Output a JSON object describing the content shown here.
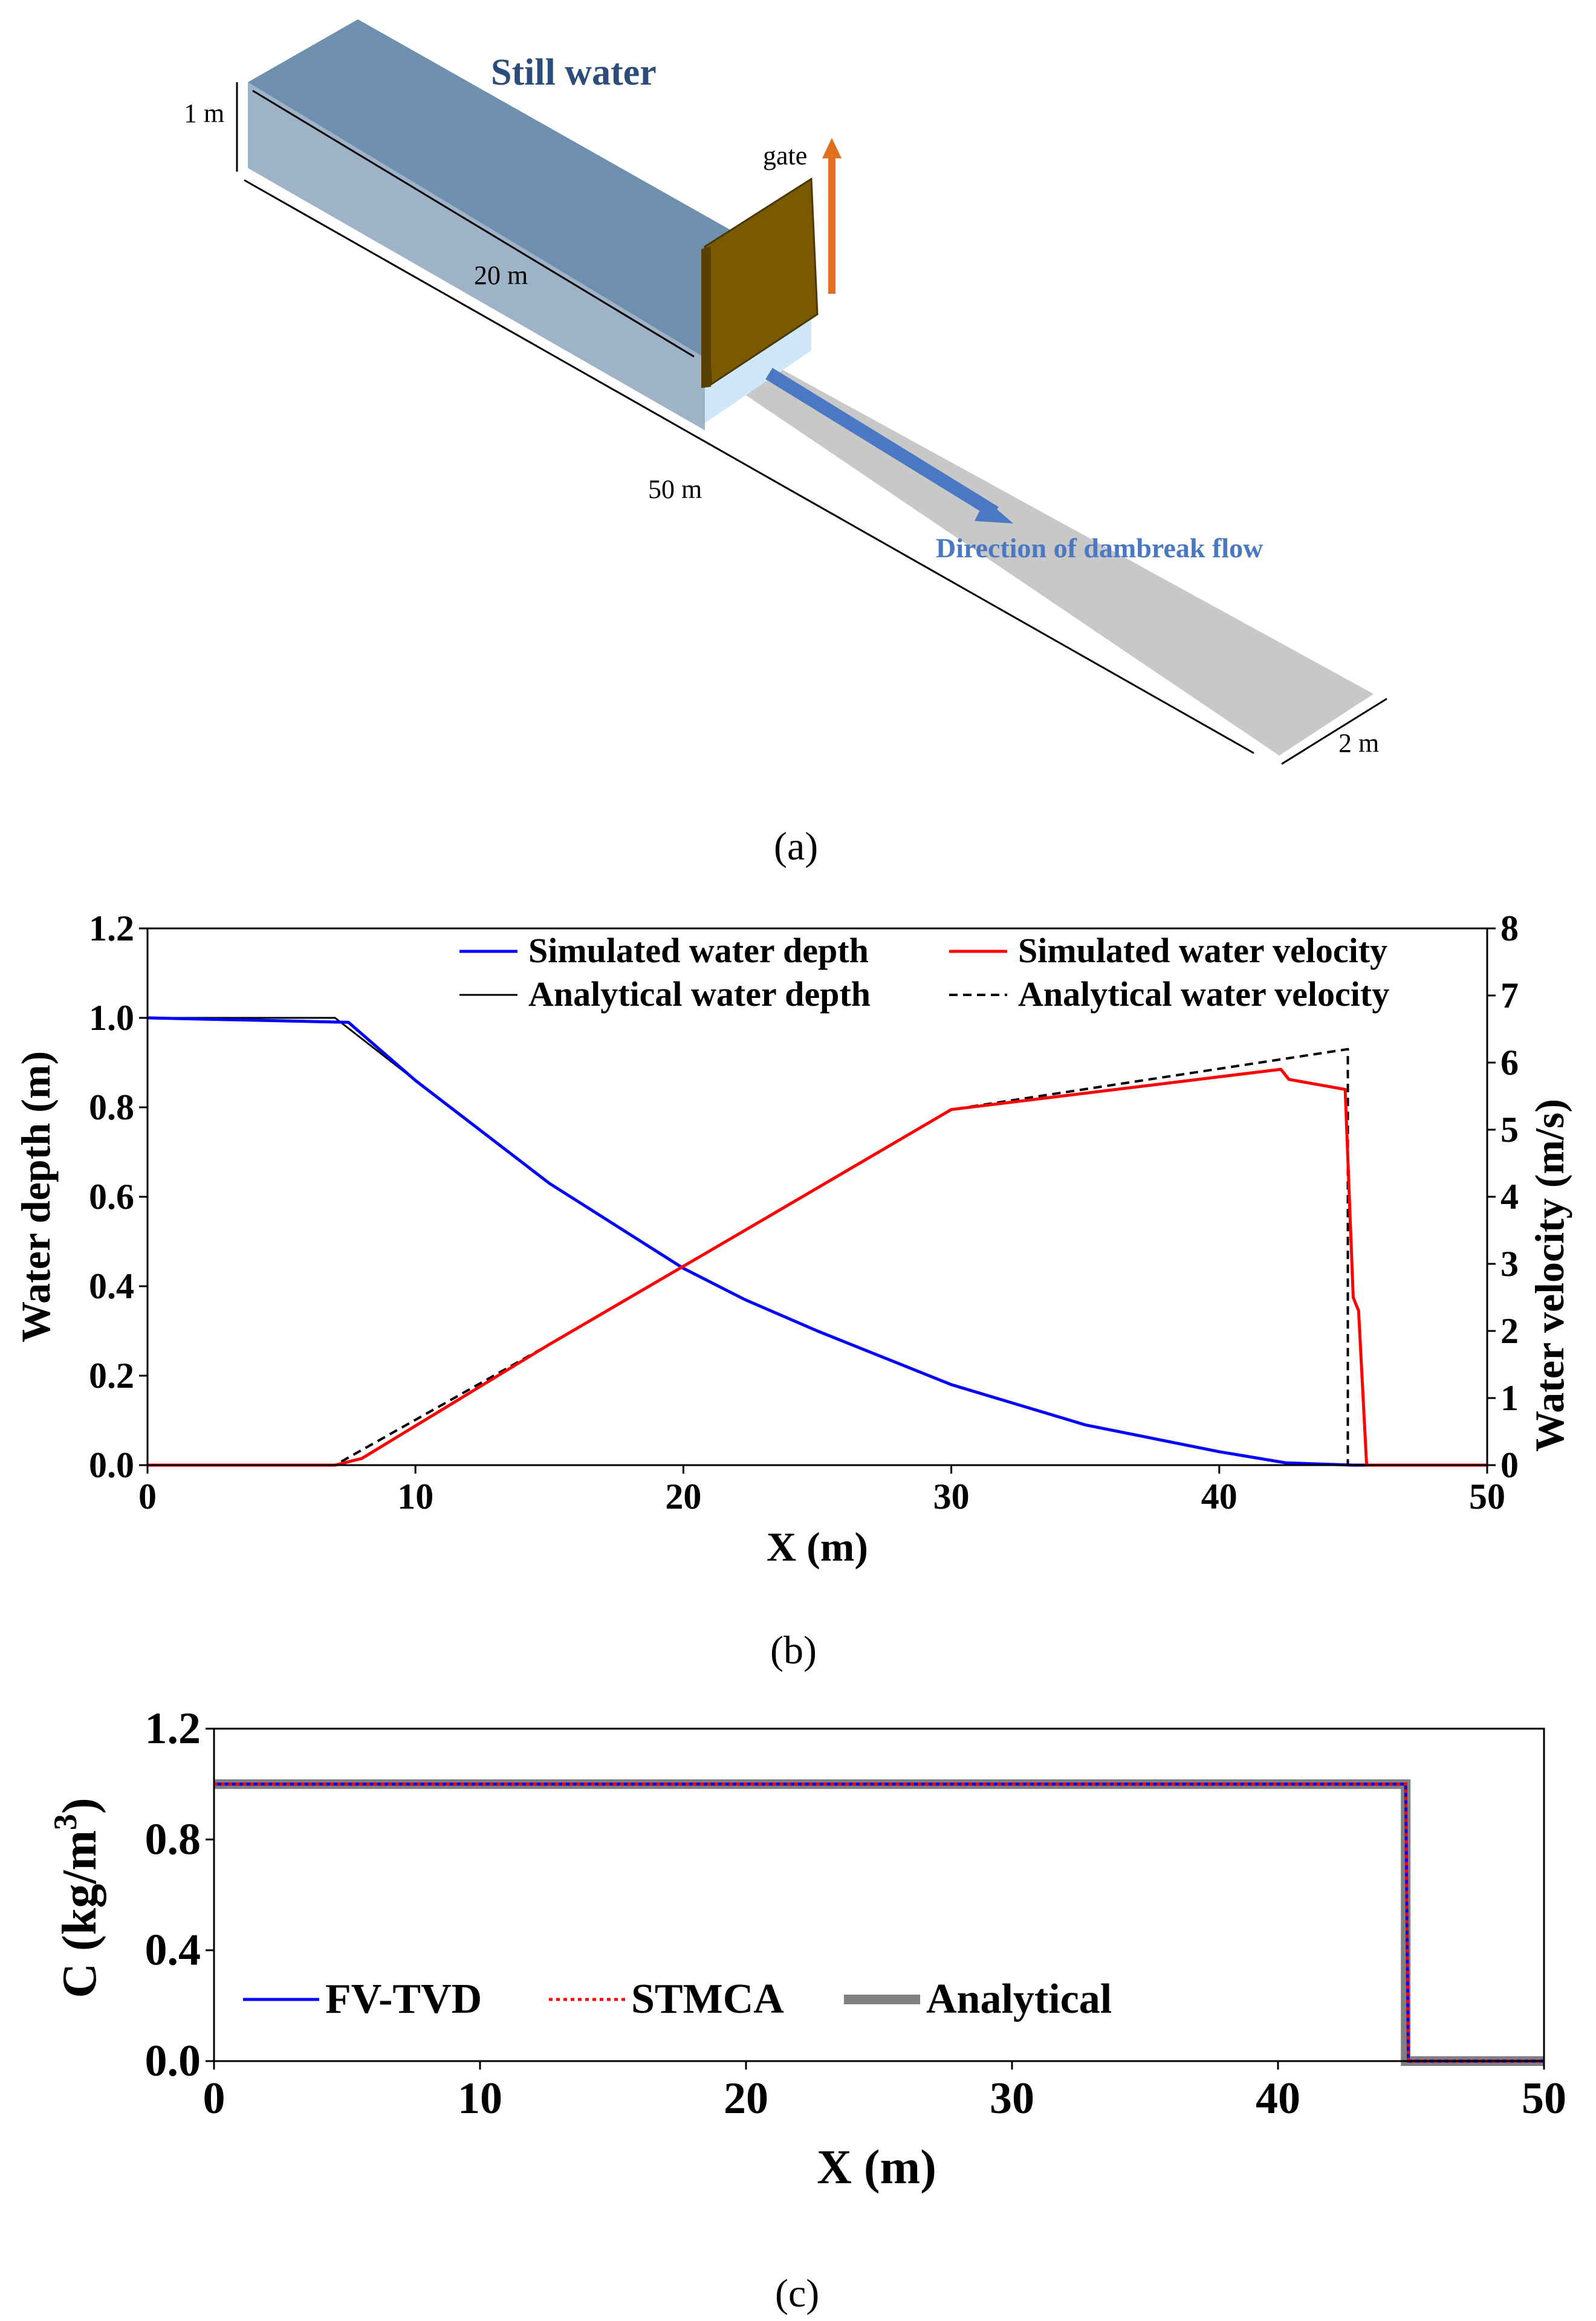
{
  "diagram": {
    "title": "Still water",
    "gate_label": "gate",
    "flow_label": "Direction of dambreak flow",
    "dim_height": "1 m",
    "dim_reservoir": "20 m",
    "dim_channel": "50 m",
    "dim_width": "2 m",
    "panel_label": "(a)",
    "colors": {
      "water_top": "#6f8fae",
      "water_front": "#9fb3c8",
      "gate": "#7a5a00",
      "channel": "#c8c8c8",
      "arrow": "#4a78c2",
      "gate_arrow": "#e07020"
    }
  },
  "chart_b": {
    "panel_label": "(b)",
    "xlabel": "X (m)",
    "ylabel_left": "Water depth (m)",
    "ylabel_right": "Water velocity (m/s)",
    "xlim": [
      0,
      50
    ],
    "ylim_left": [
      0,
      1.2
    ],
    "ylim_right": [
      0,
      8
    ],
    "xticks": [
      "0",
      "10",
      "20",
      "30",
      "40",
      "50"
    ],
    "yticks_left": [
      "0.0",
      "0.2",
      "0.4",
      "0.6",
      "0.8",
      "1.0",
      "1.2"
    ],
    "yticks_right": [
      "0",
      "1",
      "2",
      "3",
      "4",
      "5",
      "6",
      "7",
      "8"
    ],
    "legend": [
      {
        "label": "Simulated water depth",
        "color": "#0000ff",
        "style": "solid"
      },
      {
        "label": "Analytical water depth",
        "color": "#000000",
        "style": "solid"
      },
      {
        "label": "Simulated water velocity",
        "color": "#ff0000",
        "style": "solid"
      },
      {
        "label": "Analytical water velocity",
        "color": "#000000",
        "style": "dashed"
      }
    ]
  },
  "chart_c": {
    "panel_label": "(c)",
    "xlabel": "X (m)",
    "ylabel": "C (kg/m",
    "ylabel_sup": "3",
    "ylabel_end": ")",
    "xlim": [
      0,
      50
    ],
    "ylim": [
      0,
      1.2
    ],
    "xticks": [
      "0",
      "10",
      "20",
      "30",
      "40",
      "50"
    ],
    "yticks": [
      "0.0",
      "0.4",
      "0.8",
      "1.2"
    ],
    "legend": [
      {
        "label": "FV-TVD",
        "color": "#0000ff",
        "style": "solid"
      },
      {
        "label": "STMCA",
        "color": "#ff0000",
        "style": "dotted"
      },
      {
        "label": "Analytical",
        "color": "#808080",
        "style": "thick"
      }
    ]
  },
  "chart_data": [
    {
      "type": "line",
      "panel": "b",
      "xlabel": "X (m)",
      "ylabel": "Water depth (m)",
      "y2label": "Water velocity (m/s)",
      "xlim": [
        0,
        50
      ],
      "ylim": [
        0,
        1.2
      ],
      "y2lim": [
        0,
        8
      ],
      "grid": false,
      "legend_position": "top-right",
      "series": [
        {
          "name": "Simulated water depth",
          "axis": "left",
          "color": "#0000ff",
          "x": [
            0,
            7.5,
            10,
            15,
            20,
            22.3,
            25,
            30,
            35,
            40,
            42.5,
            45,
            50
          ],
          "y": [
            1.0,
            0.99,
            0.86,
            0.63,
            0.44,
            0.37,
            0.3,
            0.18,
            0.09,
            0.03,
            0.005,
            0.0,
            0.0
          ]
        },
        {
          "name": "Analytical water depth",
          "axis": "left",
          "color": "#000000",
          "x": [
            0,
            7.0,
            10,
            15,
            20,
            22.3,
            25,
            30,
            35,
            40,
            42.5,
            45,
            50
          ],
          "y": [
            1.0,
            1.0,
            0.86,
            0.63,
            0.44,
            0.37,
            0.3,
            0.18,
            0.09,
            0.03,
            0.005,
            0.0,
            0.0
          ]
        },
        {
          "name": "Simulated water velocity",
          "axis": "right",
          "color": "#ff0000",
          "x": [
            0,
            7.0,
            8.0,
            15,
            22.3,
            30,
            42.3,
            42.6,
            44.7,
            45.0,
            45.2,
            45.5,
            50
          ],
          "y": [
            0,
            0,
            0.1,
            1.8,
            3.5,
            5.3,
            5.9,
            5.75,
            5.6,
            2.5,
            2.3,
            0,
            0
          ]
        },
        {
          "name": "Analytical water velocity",
          "axis": "right",
          "color": "#000000",
          "x": [
            0,
            7.0,
            15,
            22.3,
            30,
            44.8,
            44.8,
            50
          ],
          "y": [
            0,
            0,
            1.8,
            3.5,
            5.3,
            6.2,
            0,
            0
          ]
        }
      ]
    },
    {
      "type": "line",
      "panel": "c",
      "xlabel": "X (m)",
      "ylabel": "C (kg/m3)",
      "xlim": [
        0,
        50
      ],
      "ylim": [
        0,
        1.2
      ],
      "grid": false,
      "legend_position": "bottom-left",
      "series": [
        {
          "name": "Analytical",
          "color": "#808080",
          "x": [
            0,
            44.8,
            44.8,
            50
          ],
          "y": [
            1.0,
            1.0,
            0.0,
            0.0
          ]
        },
        {
          "name": "FV-TVD",
          "color": "#0000ff",
          "x": [
            0,
            44.8,
            44.9,
            50
          ],
          "y": [
            1.0,
            1.0,
            0.0,
            0.0
          ]
        },
        {
          "name": "STMCA",
          "color": "#ff0000",
          "x": [
            0,
            44.8,
            44.9,
            50
          ],
          "y": [
            1.0,
            1.0,
            0.0,
            0.0
          ]
        }
      ]
    }
  ]
}
